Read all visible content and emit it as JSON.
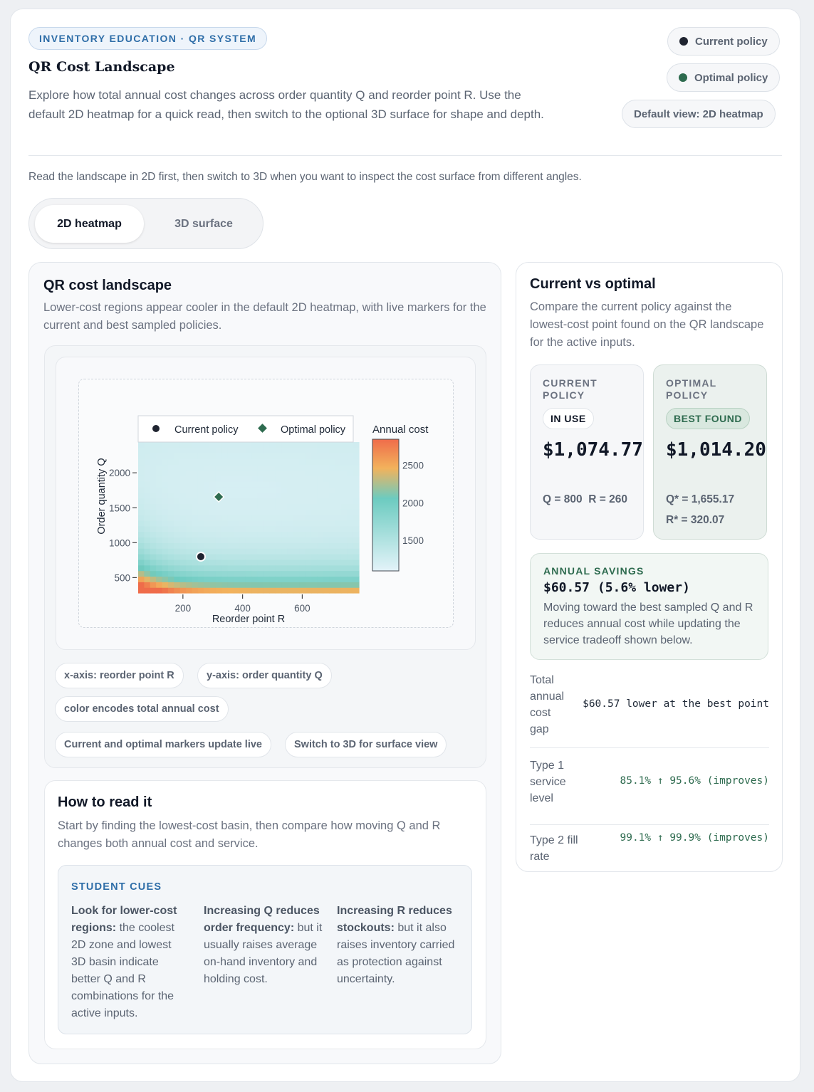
{
  "header": {
    "eyebrow": "INVENTORY EDUCATION · QR SYSTEM",
    "title": "QR Cost Landscape",
    "description": "Explore how total annual cost changes across order quantity Q and reorder point R. Use the default 2D heatmap for a quick read, then switch to the optional 3D surface for shape and depth.",
    "legend_current": "Current policy",
    "legend_optimal": "Optimal policy",
    "default_view": "Default view: 2D heatmap"
  },
  "hint": "Read the landscape in 2D first, then switch to 3D when you want to inspect the cost surface from different angles.",
  "tabs": {
    "heatmap": "2D heatmap",
    "surface": "3D surface",
    "active": "heatmap"
  },
  "colors": {
    "current": "#1f2430",
    "optimal": "#2e6b4f",
    "accent": "#2f6ea8"
  },
  "landscape": {
    "title": "QR cost landscape",
    "subtitle": "Lower-cost regions appear cooler in the default 2D heatmap, with live markers for the current and best sampled policies.",
    "chips": [
      "x-axis: reorder point  R",
      "y-axis: order quantity  Q",
      "color encodes total annual cost",
      "Current and optimal markers update live",
      "Switch to 3D for surface view"
    ]
  },
  "chart_data": {
    "type": "heatmap",
    "title": "",
    "xlabel": "Reorder point R",
    "ylabel": "Order quantity Q",
    "colorbar_title": "Annual cost",
    "xticks": [
      200,
      400,
      600
    ],
    "yticks": [
      500,
      1000,
      1500,
      2000
    ],
    "colorbar_ticks": [
      1500,
      2000,
      2500
    ],
    "xlim": [
      50,
      790
    ],
    "ylim": [
      280,
      2440
    ],
    "zlim": [
      1000,
      2750
    ],
    "legend": [
      "Current policy",
      "Optimal policy"
    ],
    "legend_position": "top",
    "points": [
      {
        "name": "Current policy",
        "x": 260,
        "y": 800
      },
      {
        "name": "Optimal policy",
        "x": 320.07,
        "y": 1655.17
      }
    ]
  },
  "howto": {
    "title": "How to read it",
    "subtitle": "Start by finding the lowest-cost basin, then compare how moving Q and R changes both annual cost and service.",
    "cues_title": "STUDENT CUES",
    "cues": [
      {
        "strong": "Look for lower-cost regions:",
        "text": " the coolest 2D zone and lowest 3D basin indicate better Q and R combinations for the active inputs."
      },
      {
        "strong": "Increasing Q reduces order frequency:",
        "text": " but it usually raises average on-hand inventory and holding cost."
      },
      {
        "strong": "Increasing R reduces stockouts:",
        "text": " but it also raises inventory carried as protection against uncertainty."
      }
    ]
  },
  "comparison": {
    "title": "Current vs optimal",
    "subtitle": "Compare the current policy against the lowest-cost point found on the QR landscape for the active inputs.",
    "current": {
      "label": "CURRENT POLICY",
      "badge": "IN USE",
      "cost": "$1,074.77",
      "q": "Q = 800",
      "r": "R = 260"
    },
    "optimal": {
      "label": "OPTIMAL POLICY",
      "badge": "BEST FOUND",
      "cost": "$1,014.20",
      "q": "Q* = 1,655.17",
      "r": "R* = 320.07"
    },
    "savings": {
      "label": "ANNUAL SAVINGS",
      "value": "$60.57 (5.6% lower)",
      "text": "Moving toward the best sampled Q and R reduces annual cost while updating the service tradeoff shown below."
    },
    "rows": [
      {
        "label": "Total annual cost gap",
        "value": "$60.57 lower at the best point"
      },
      {
        "label": "Type 1 service level",
        "value": "85.1% ↑ 95.6% (improves)"
      },
      {
        "label": "Type 2 fill rate",
        "value": "99.1% ↑ 99.9% (improves)"
      }
    ]
  }
}
